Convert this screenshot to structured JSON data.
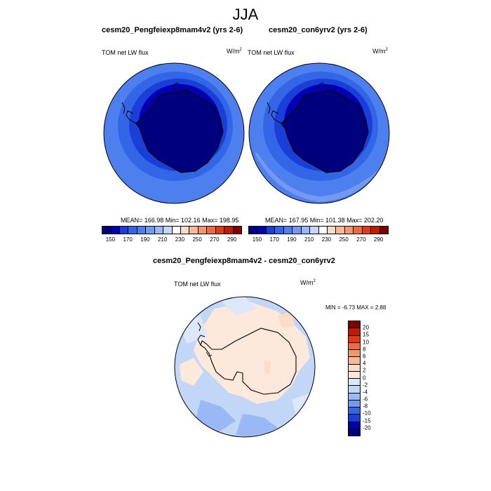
{
  "title": "JJA",
  "panels": [
    {
      "title": "cesm20_Pengfeiexp8mam4v2 (yrs 2-6)",
      "var": "TOM net LW flux",
      "units_base": "W/m",
      "units_sup": "2",
      "stats": "MEAN= 166.98  Min= 102.16  Max= 198.95"
    },
    {
      "title": "cesm20_con6yrv2 (yrs 2-6)",
      "var": "TOM net LW flux",
      "units_base": "W/m",
      "units_sup": "2",
      "stats": "MEAN= 167.95  Min= 101.38  Max= 202.20"
    }
  ],
  "colorbar_abs": {
    "labels": [
      "150",
      "170",
      "190",
      "210",
      "230",
      "250",
      "270",
      "290"
    ],
    "colors": [
      "#00007f",
      "#0000b2",
      "#1a3fd9",
      "#3366e6",
      "#4d7fef",
      "#7399f2",
      "#99b8f5",
      "#c2d6f7",
      "#ffffff",
      "#fbdcc6",
      "#f6b896",
      "#f3966b",
      "#ee6a40",
      "#e33a14",
      "#c01a00",
      "#7f0000"
    ]
  },
  "diff": {
    "title": "cesm20_Pengfeiexp8mam4v2 - cesm20_con6yrv2",
    "var": "TOM net LW flux",
    "units_base": "W/m",
    "units_sup": "2",
    "stats": "MIN =  -6.73 MAX =   2.88"
  },
  "colorbar_diff": {
    "labels": [
      "20",
      "15",
      "10",
      "8",
      "6",
      "4",
      "2",
      "0",
      "-2",
      "-4",
      "-6",
      "-8",
      "-10",
      "-15",
      "-20"
    ],
    "colors": [
      "#7f0000",
      "#c01a00",
      "#e33a14",
      "#ee6a40",
      "#f3966b",
      "#f6b896",
      "#fbdcc6",
      "#fde9dc",
      "#dce8fa",
      "#c2d6f7",
      "#99b8f5",
      "#7399f2",
      "#3366e6",
      "#1a3fd9",
      "#0000b2",
      "#00007f"
    ]
  }
}
